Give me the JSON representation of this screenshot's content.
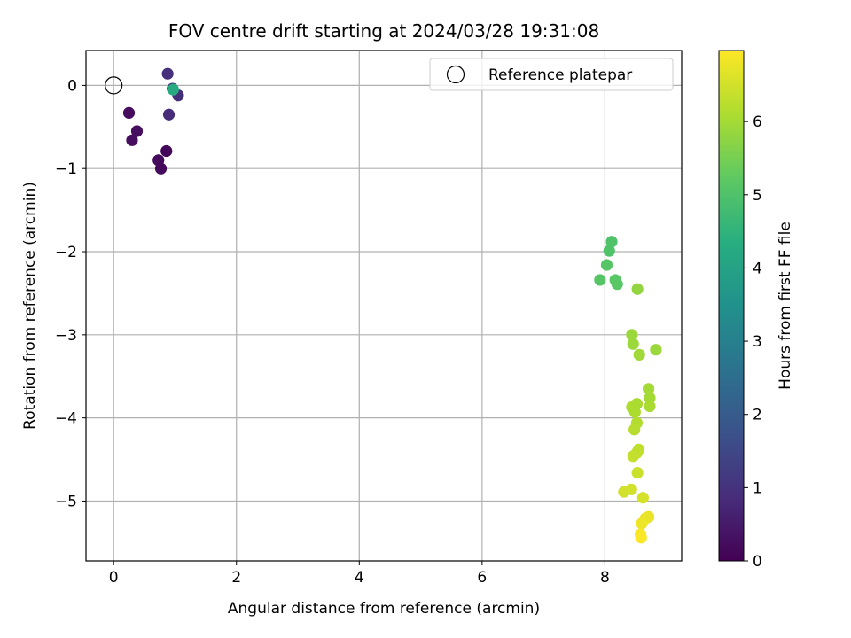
{
  "chart_data": {
    "type": "scatter",
    "title": "FOV centre drift starting at 2024/03/28 19:31:08",
    "xlabel": "Angular distance from reference (arcmin)",
    "ylabel": "Rotation from reference (arcmin)",
    "xlim": [
      -0.45,
      9.25
    ],
    "ylim": [
      -5.72,
      0.42
    ],
    "xticks": [
      0,
      2,
      4,
      6,
      8
    ],
    "yticks": [
      0,
      -1,
      -2,
      -3,
      -4,
      -5
    ],
    "xtick_labels": [
      "0",
      "2",
      "4",
      "6",
      "8"
    ],
    "ytick_labels": [
      "0",
      "−1",
      "−2",
      "−3",
      "−4",
      "−5"
    ],
    "grid": true,
    "legend": {
      "position": "top-right",
      "entries": [
        "Reference platepar"
      ]
    },
    "colormap": "viridis",
    "colorbar": {
      "label": "Hours from first FF file",
      "range": [
        0,
        6.97
      ],
      "ticks": [
        0,
        1,
        2,
        3,
        4,
        5,
        6
      ],
      "tick_labels": [
        "0",
        "1",
        "2",
        "3",
        "4",
        "5",
        "6"
      ]
    },
    "reference_point": {
      "x": 0,
      "y": 0
    },
    "points": [
      {
        "x": 0.25,
        "y": -0.33,
        "hours": 0.2
      },
      {
        "x": 0.38,
        "y": -0.55,
        "hours": 0.25
      },
      {
        "x": 0.3,
        "y": -0.66,
        "hours": 0.25
      },
      {
        "x": 0.73,
        "y": -0.9,
        "hours": 0.2
      },
      {
        "x": 0.77,
        "y": -1.0,
        "hours": 0.15
      },
      {
        "x": 0.86,
        "y": -0.79,
        "hours": 0.1
      },
      {
        "x": 0.88,
        "y": 0.14,
        "hours": 0.95
      },
      {
        "x": 0.9,
        "y": -0.35,
        "hours": 0.85
      },
      {
        "x": 0.96,
        "y": -0.04,
        "hours": 1.0
      },
      {
        "x": 1.05,
        "y": -0.12,
        "hours": 0.95
      },
      {
        "x": 0.97,
        "y": -0.05,
        "hours": 4.2
      },
      {
        "x": 8.11,
        "y": -1.88,
        "hours": 5.0
      },
      {
        "x": 8.07,
        "y": -1.99,
        "hours": 5.0
      },
      {
        "x": 8.03,
        "y": -2.16,
        "hours": 5.1
      },
      {
        "x": 7.92,
        "y": -2.34,
        "hours": 5.1
      },
      {
        "x": 8.17,
        "y": -2.34,
        "hours": 5.15
      },
      {
        "x": 8.2,
        "y": -2.39,
        "hours": 5.15
      },
      {
        "x": 8.53,
        "y": -2.45,
        "hours": 5.8
      },
      {
        "x": 8.44,
        "y": -3.0,
        "hours": 5.9
      },
      {
        "x": 8.46,
        "y": -3.11,
        "hours": 5.9
      },
      {
        "x": 8.56,
        "y": -3.24,
        "hours": 5.95
      },
      {
        "x": 8.83,
        "y": -3.18,
        "hours": 5.9
      },
      {
        "x": 8.71,
        "y": -3.65,
        "hours": 6.0
      },
      {
        "x": 8.73,
        "y": -3.76,
        "hours": 6.0
      },
      {
        "x": 8.73,
        "y": -3.86,
        "hours": 6.05
      },
      {
        "x": 8.52,
        "y": -3.83,
        "hours": 6.05
      },
      {
        "x": 8.44,
        "y": -3.87,
        "hours": 6.1
      },
      {
        "x": 8.49,
        "y": -3.93,
        "hours": 6.1
      },
      {
        "x": 8.52,
        "y": -4.06,
        "hours": 6.15
      },
      {
        "x": 8.48,
        "y": -4.14,
        "hours": 6.2
      },
      {
        "x": 8.55,
        "y": -4.38,
        "hours": 6.3
      },
      {
        "x": 8.52,
        "y": -4.42,
        "hours": 6.3
      },
      {
        "x": 8.46,
        "y": -4.46,
        "hours": 6.35
      },
      {
        "x": 8.53,
        "y": -4.66,
        "hours": 6.4
      },
      {
        "x": 8.43,
        "y": -4.86,
        "hours": 6.5
      },
      {
        "x": 8.31,
        "y": -4.89,
        "hours": 6.5
      },
      {
        "x": 8.62,
        "y": -4.96,
        "hours": 6.55
      },
      {
        "x": 8.71,
        "y": -5.19,
        "hours": 6.75
      },
      {
        "x": 8.66,
        "y": -5.21,
        "hours": 6.75
      },
      {
        "x": 8.6,
        "y": -5.27,
        "hours": 6.8
      },
      {
        "x": 8.58,
        "y": -5.4,
        "hours": 6.9
      },
      {
        "x": 8.59,
        "y": -5.44,
        "hours": 6.95
      }
    ]
  }
}
